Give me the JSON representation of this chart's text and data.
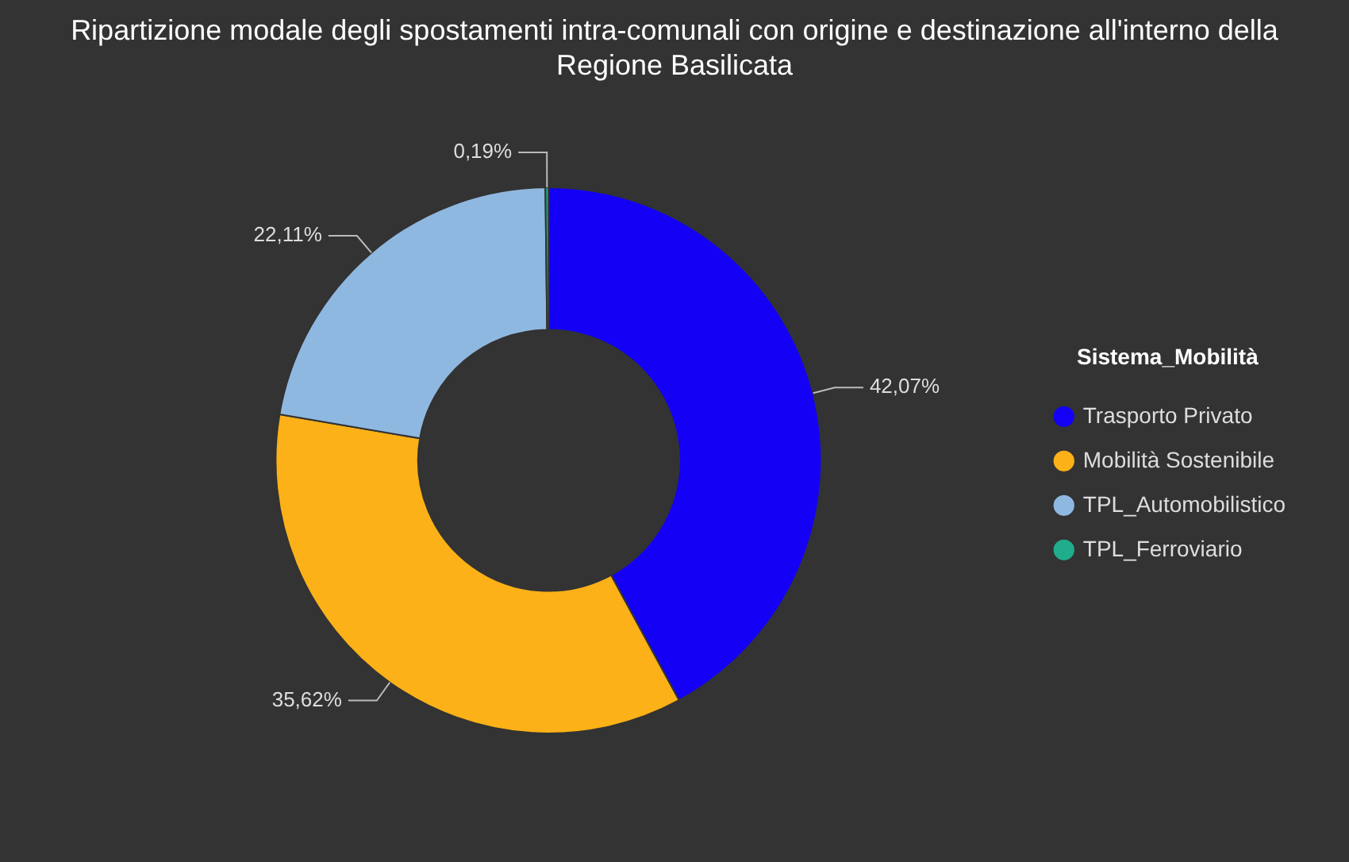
{
  "chart_data": {
    "type": "donut",
    "title": "Ripartizione modale degli spostamenti intra-comunali con origine e destinazione all'interno della Regione Basilicata",
    "legend_title": "Sistema_Mobilità",
    "legend": "right",
    "categories": [
      "Trasporto Privato",
      "Mobilità Sostenibile",
      "TPL_Automobilistico",
      "TPL_Ferroviario"
    ],
    "values": [
      42.07,
      35.62,
      22.11,
      0.19
    ],
    "value_labels": [
      "42,07%",
      "35,62%",
      "22,11%",
      "0,19%"
    ],
    "colors": [
      "#1400f5",
      "#fbb117",
      "#8fb8e0",
      "#1fad8c"
    ]
  }
}
